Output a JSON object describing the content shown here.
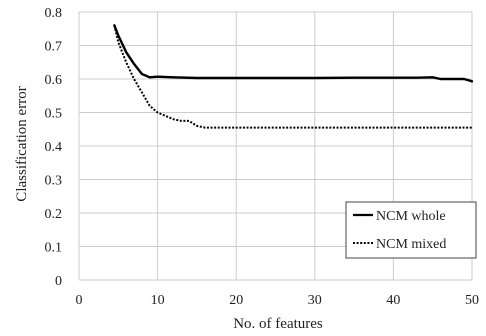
{
  "chart_data": {
    "type": "line",
    "title": "",
    "xlabel": "No. of features",
    "ylabel": "Classification error",
    "xlim": [
      0,
      50
    ],
    "ylim": [
      0,
      0.8
    ],
    "xticks": [
      "0",
      "10",
      "20",
      "30",
      "40",
      "50"
    ],
    "yticks": [
      "0",
      "0.1",
      "0.2",
      "0.3",
      "0.4",
      "0.5",
      "0.6",
      "0.7",
      "0.8"
    ],
    "grid": "both",
    "legend_position": "lower-right",
    "series": [
      {
        "name": "NCM whole",
        "line_style": "solid",
        "color": "#000000",
        "x": [
          4.5,
          5,
          6,
          7,
          8,
          9,
          10,
          12,
          15,
          20,
          25,
          30,
          35,
          40,
          43,
          45,
          46,
          47,
          49,
          50
        ],
        "y": [
          0.76,
          0.73,
          0.68,
          0.645,
          0.615,
          0.605,
          0.607,
          0.605,
          0.603,
          0.603,
          0.603,
          0.603,
          0.604,
          0.604,
          0.604,
          0.605,
          0.6,
          0.6,
          0.6,
          0.593
        ]
      },
      {
        "name": "NCM mixed",
        "line_style": "dotted",
        "color": "#000000",
        "x": [
          4.5,
          5,
          6,
          7,
          8,
          9,
          10,
          11,
          12,
          13,
          14,
          15,
          16,
          20,
          25,
          30,
          35,
          40,
          45,
          50
        ],
        "y": [
          0.76,
          0.71,
          0.65,
          0.6,
          0.56,
          0.52,
          0.5,
          0.49,
          0.48,
          0.475,
          0.475,
          0.46,
          0.455,
          0.455,
          0.455,
          0.455,
          0.455,
          0.455,
          0.455,
          0.455
        ]
      }
    ]
  }
}
